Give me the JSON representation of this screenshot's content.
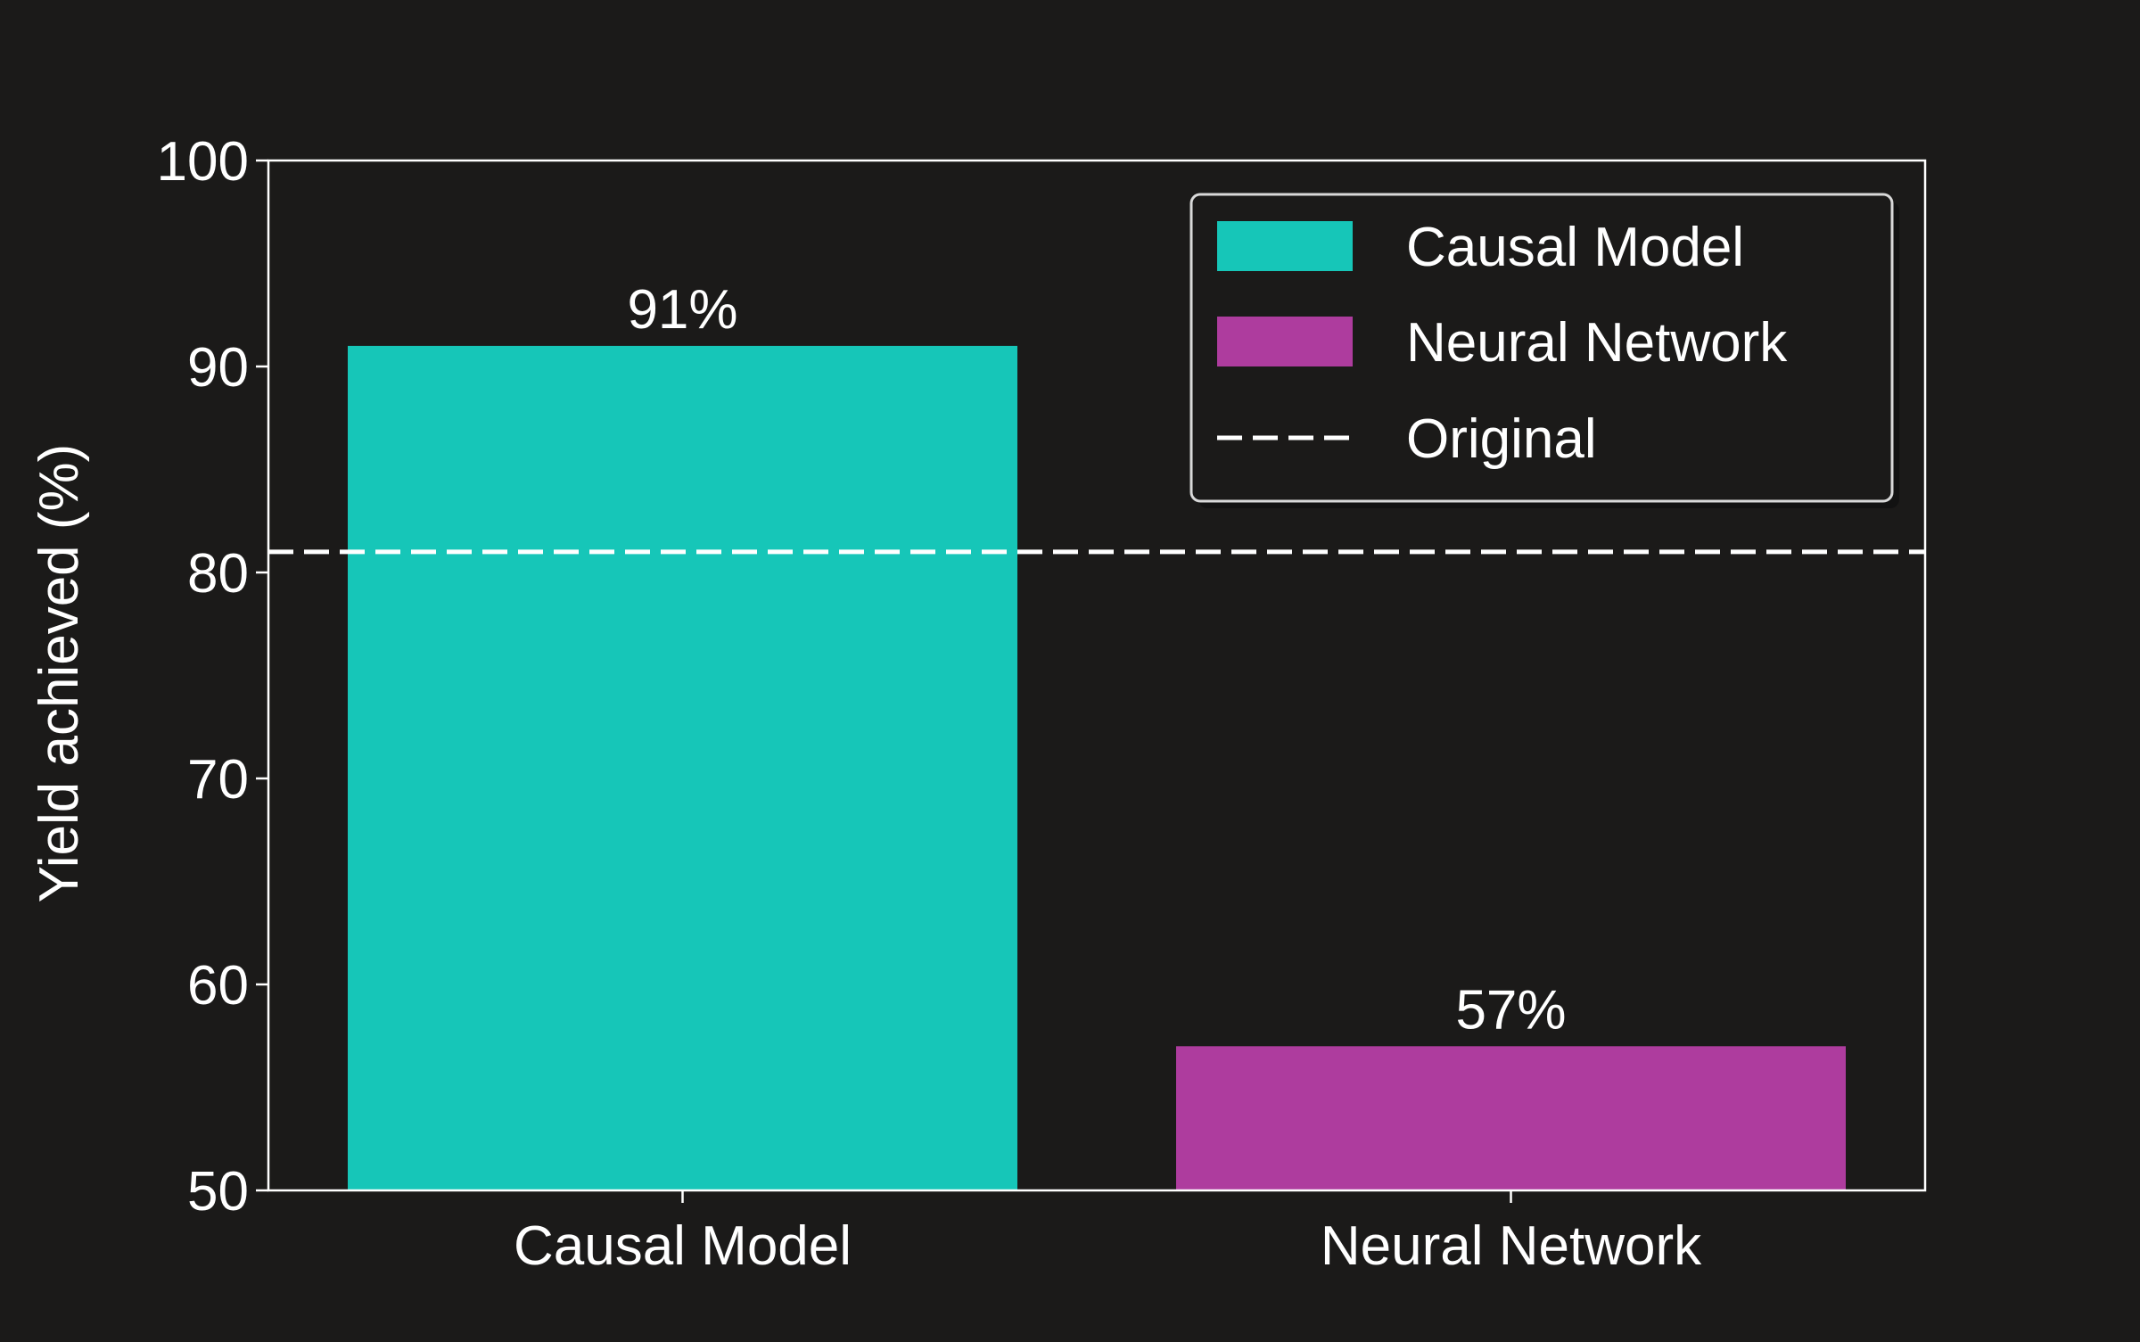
{
  "chart_data": {
    "type": "bar",
    "title": "",
    "xlabel": "",
    "ylabel": "Yield achieved (%)",
    "ylim": [
      50,
      100
    ],
    "yticks": [
      50,
      60,
      70,
      80,
      90,
      100
    ],
    "categories": [
      "Causal Model",
      "Neural Network"
    ],
    "values": [
      91,
      57
    ],
    "bar_labels": [
      "91%",
      "57%"
    ],
    "bar_colors": [
      "#16c6b8",
      "#ae3c9e"
    ],
    "reference_line": {
      "name": "Original",
      "value": 81,
      "style": "dashed",
      "color": "#ffffff"
    },
    "legend": {
      "position": "top-right",
      "entries": [
        {
          "label": "Causal Model",
          "kind": "patch",
          "color": "#16c6b8"
        },
        {
          "label": "Neural Network",
          "kind": "patch",
          "color": "#ae3c9e"
        },
        {
          "label": "Original",
          "kind": "dashed-line",
          "color": "#ffffff"
        }
      ]
    },
    "grid": false,
    "background": "#1b1a19",
    "axis_color": "#ffffff"
  }
}
